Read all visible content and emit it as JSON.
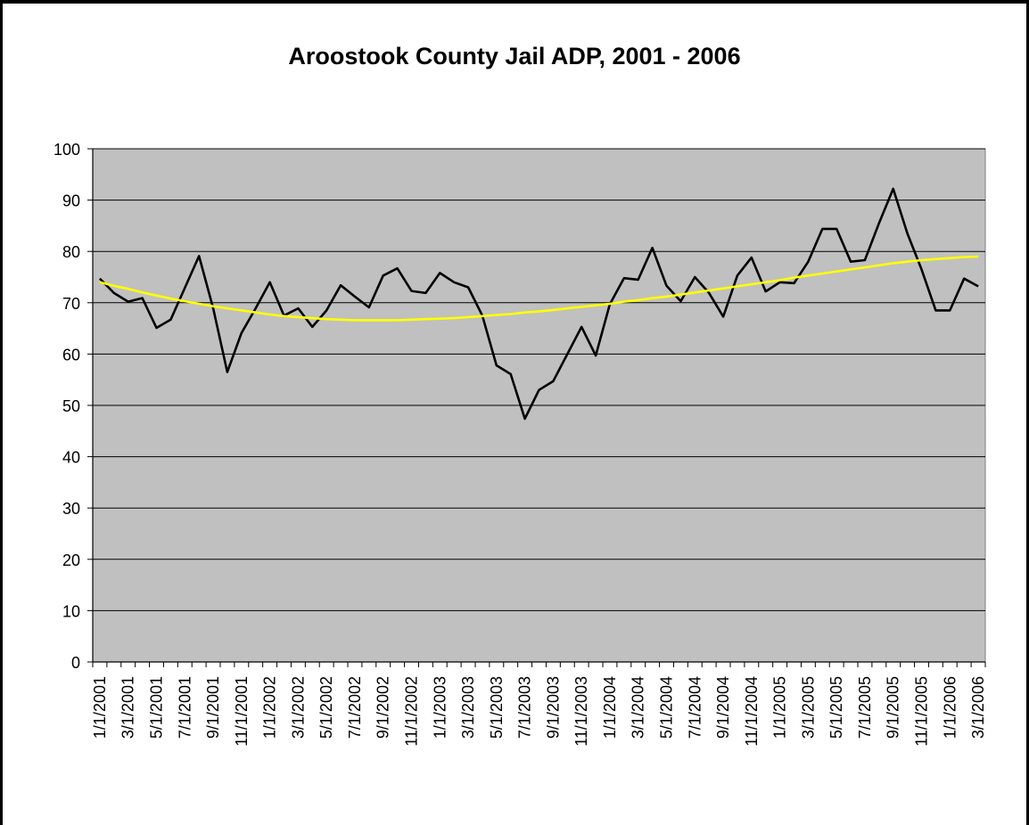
{
  "chart_data": {
    "type": "line",
    "title": "Aroostook County Jail ADP, 2001 - 2006",
    "xlabel": "",
    "ylabel": "",
    "ylim": [
      0,
      100
    ],
    "yticks": [
      0,
      10,
      20,
      30,
      40,
      50,
      60,
      70,
      80,
      90,
      100
    ],
    "grid": true,
    "legend": "none",
    "plot_background": "#C0C0C0",
    "x_tick_labels": [
      "1/1/2001",
      "3/1/2001",
      "5/1/2001",
      "7/1/2001",
      "9/1/2001",
      "11/1/2001",
      "1/1/2002",
      "3/1/2002",
      "5/1/2002",
      "7/1/2002",
      "9/1/2002",
      "11/1/2002",
      "1/1/2003",
      "3/1/2003",
      "5/1/2003",
      "7/1/2003",
      "9/1/2003",
      "11/1/2003",
      "1/1/2004",
      "3/1/2004",
      "5/1/2004",
      "7/1/2004",
      "9/1/2004",
      "11/1/2004",
      "1/1/2005",
      "3/1/2005",
      "5/1/2005",
      "7/1/2005",
      "9/1/2005",
      "11/1/2005",
      "1/1/2006",
      "3/1/2006"
    ],
    "x": [
      "1/1/2001",
      "2/1/2001",
      "3/1/2001",
      "4/1/2001",
      "5/1/2001",
      "6/1/2001",
      "7/1/2001",
      "8/1/2001",
      "9/1/2001",
      "10/1/2001",
      "11/1/2001",
      "12/1/2001",
      "1/1/2002",
      "2/1/2002",
      "3/1/2002",
      "4/1/2002",
      "5/1/2002",
      "6/1/2002",
      "7/1/2002",
      "8/1/2002",
      "9/1/2002",
      "10/1/2002",
      "11/1/2002",
      "12/1/2002",
      "1/1/2003",
      "2/1/2003",
      "3/1/2003",
      "4/1/2003",
      "5/1/2003",
      "6/1/2003",
      "7/1/2003",
      "8/1/2003",
      "9/1/2003",
      "10/1/2003",
      "11/1/2003",
      "12/1/2003",
      "1/1/2004",
      "2/1/2004",
      "3/1/2004",
      "4/1/2004",
      "5/1/2004",
      "6/1/2004",
      "7/1/2004",
      "8/1/2004",
      "9/1/2004",
      "10/1/2004",
      "11/1/2004",
      "12/1/2004",
      "1/1/2005",
      "2/1/2005",
      "3/1/2005",
      "4/1/2005",
      "5/1/2005",
      "6/1/2005",
      "7/1/2005",
      "8/1/2005",
      "9/1/2005",
      "10/1/2005",
      "11/1/2005",
      "12/1/2005",
      "1/1/2006",
      "2/1/2006",
      "3/1/2006"
    ],
    "series": [
      {
        "color": "#000000",
        "values": [
          74.7,
          71.9,
          70.2,
          70.9,
          65.1,
          66.7,
          72.9,
          79.1,
          68.9,
          56.5,
          64.1,
          68.9,
          74.0,
          67.5,
          68.9,
          65.3,
          68.5,
          73.4,
          71.2,
          69.1,
          75.3,
          76.7,
          72.3,
          71.9,
          75.8,
          74.0,
          73.0,
          67.5,
          57.8,
          56.1,
          47.4,
          53.0,
          54.7,
          60.0,
          65.3,
          59.7,
          69.7,
          74.8,
          74.5,
          80.7,
          73.3,
          70.3,
          75.0,
          71.9,
          67.3,
          75.3,
          78.8,
          72.2,
          74.0,
          73.8,
          78.0,
          84.4,
          84.4,
          78.0,
          78.3,
          85.5,
          92.2,
          83.5,
          76.5,
          68.5,
          68.5,
          74.7,
          73.2
        ]
      },
      {
        "color": "#FFFF00",
        "values": [
          74.0,
          73.3,
          72.7,
          72.0,
          71.4,
          70.8,
          70.3,
          69.8,
          69.3,
          68.9,
          68.5,
          68.1,
          67.7,
          67.4,
          67.2,
          67.0,
          66.8,
          66.7,
          66.6,
          66.6,
          66.6,
          66.6,
          66.7,
          66.8,
          66.9,
          67.0,
          67.2,
          67.4,
          67.6,
          67.8,
          68.1,
          68.3,
          68.6,
          68.9,
          69.2,
          69.5,
          69.8,
          70.2,
          70.5,
          70.9,
          71.2,
          71.6,
          72.0,
          72.4,
          72.8,
          73.2,
          73.6,
          74.0,
          74.4,
          74.9,
          75.3,
          75.7,
          76.1,
          76.5,
          76.9,
          77.3,
          77.7,
          78.0,
          78.3,
          78.5,
          78.7,
          78.9,
          79.0
        ]
      }
    ]
  }
}
